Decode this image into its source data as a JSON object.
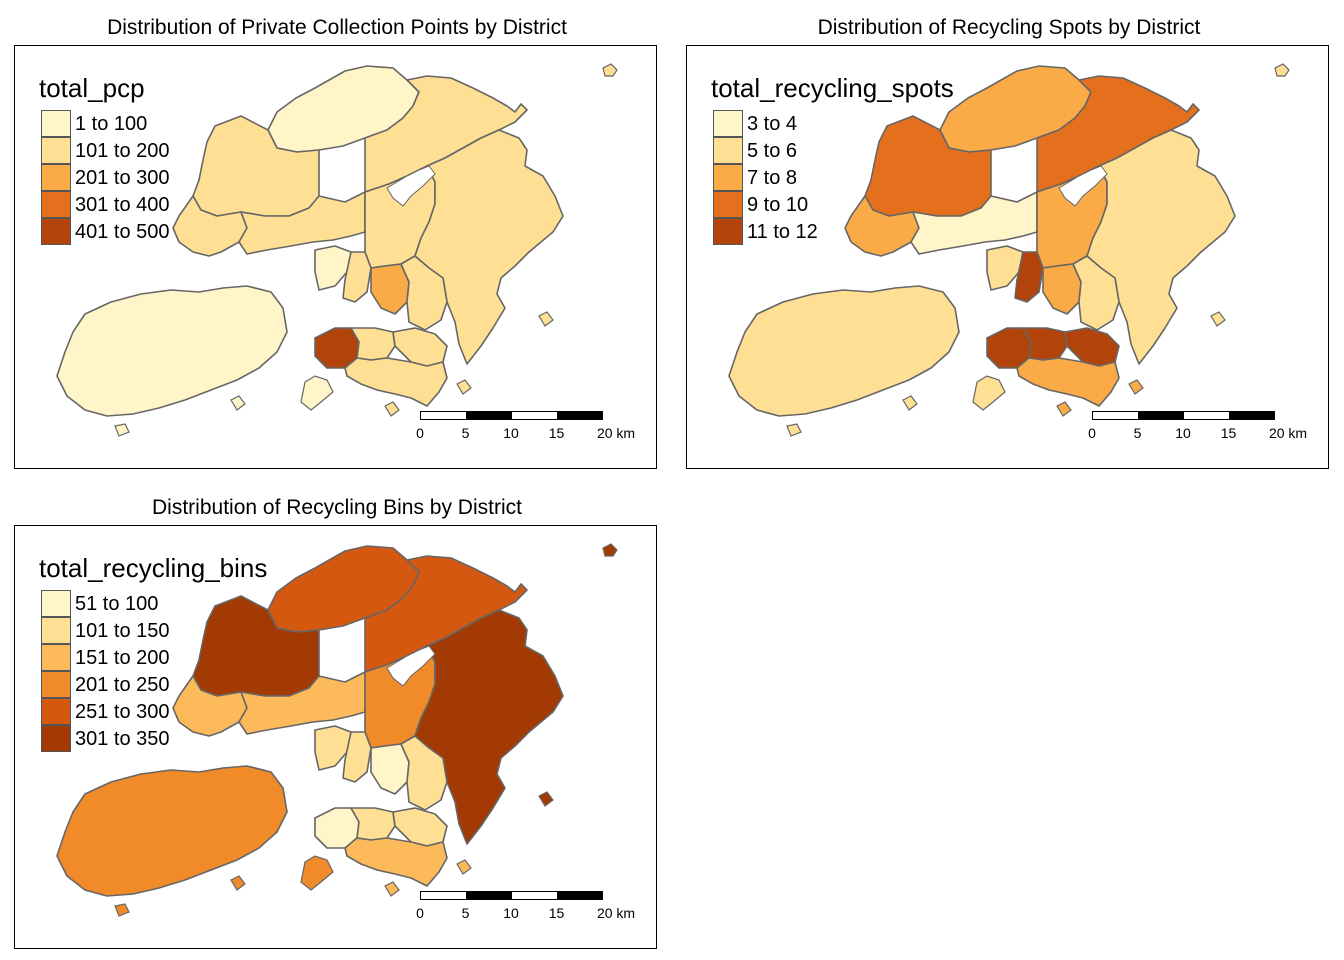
{
  "panels": [
    {
      "title": "Distribution of Private Collection Points by District",
      "legend_title": "total_pcp",
      "legend": [
        {
          "label": "1 to 100",
          "color": "#FFF5C8"
        },
        {
          "label": "101 to 200",
          "color": "#FEDF94"
        },
        {
          "label": "201 to 300",
          "color": "#FAAB48"
        },
        {
          "label": "301 to 400",
          "color": "#E4701E"
        },
        {
          "label": "401 to 500",
          "color": "#B2430B"
        }
      ],
      "district_colors": {
        "north": "#FFF5C8",
        "tai_po": "#FEDF94",
        "yuen_long": "#FEDF94",
        "tuen_mun": "#FEDF94",
        "tsuen_wan": "#FEDF94",
        "sha_tin": "#FEDF94",
        "sai_kung": "#FEDF94",
        "kwai_tsing": "#FFF5C8",
        "kowloon_a": "#FEDF94",
        "kowloon_b": "#FAAB48",
        "kowloon_c": "#FEDF94",
        "islands": "#FFF5C8",
        "hk_west": "#B2430B",
        "hk_mid": "#FEDF94",
        "hk_east": "#FEDF94",
        "hk_south": "#FEDF94"
      }
    },
    {
      "title": "Distribution of Recycling Spots by District",
      "legend_title": "total_recycling_spots",
      "legend": [
        {
          "label": "3 to 4",
          "color": "#FFF5C8"
        },
        {
          "label": "5 to 6",
          "color": "#FEDF94"
        },
        {
          "label": "7 to 8",
          "color": "#FAAB48"
        },
        {
          "label": "9 to 10",
          "color": "#E4701E"
        },
        {
          "label": "11 to 12",
          "color": "#B2430B"
        }
      ],
      "district_colors": {
        "north": "#FAAB48",
        "tai_po": "#E4701E",
        "yuen_long": "#E4701E",
        "tuen_mun": "#FAAB48",
        "tsuen_wan": "#FFF5C8",
        "sha_tin": "#FAAB48",
        "sai_kung": "#FEDF94",
        "kwai_tsing": "#FEDF94",
        "kowloon_a": "#B2430B",
        "kowloon_b": "#FAAB48",
        "kowloon_c": "#FEDF94",
        "islands": "#FEDF94",
        "hk_west": "#B2430B",
        "hk_mid": "#B2430B",
        "hk_east": "#B2430B",
        "hk_south": "#FAAB48"
      }
    },
    {
      "title": "Distribution of Recycling Bins by District",
      "legend_title": "total_recycling_bins",
      "legend": [
        {
          "label": "51 to 100",
          "color": "#FFF5C8"
        },
        {
          "label": "101 to 150",
          "color": "#FEDF94"
        },
        {
          "label": "151 to 200",
          "color": "#FDBA5A"
        },
        {
          "label": "201 to 250",
          "color": "#F18A28"
        },
        {
          "label": "251 to 300",
          "color": "#D4580F"
        },
        {
          "label": "301 to 350",
          "color": "#A33A04"
        }
      ],
      "district_colors": {
        "north": "#D4580F",
        "tai_po": "#D4580F",
        "yuen_long": "#A33A04",
        "tuen_mun": "#FDBA5A",
        "tsuen_wan": "#FDBA5A",
        "sha_tin": "#F18A28",
        "sai_kung": "#A33A04",
        "kwai_tsing": "#FEDF94",
        "kowloon_a": "#FEDF94",
        "kowloon_b": "#FFF5C8",
        "kowloon_c": "#FEDF94",
        "islands": "#F18A28",
        "hk_west": "#FFF5C8",
        "hk_mid": "#FEDF94",
        "hk_east": "#FEDF94",
        "hk_south": "#FDBA5A"
      }
    }
  ],
  "scale_bar": {
    "ticks": [
      "0",
      "5",
      "10",
      "15",
      "20 km"
    ]
  }
}
